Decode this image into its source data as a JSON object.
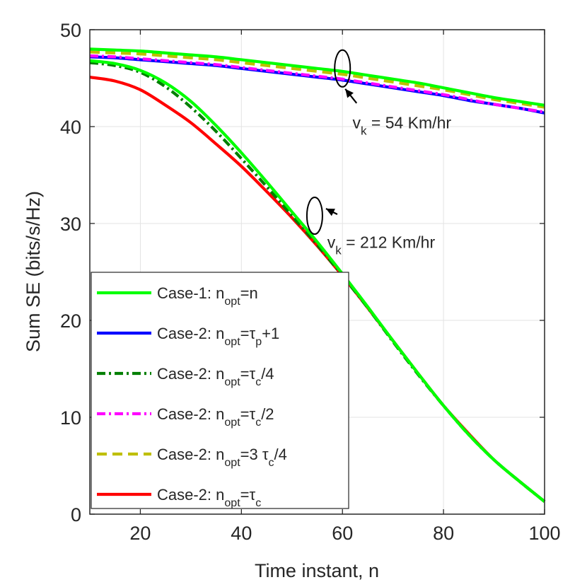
{
  "chart_data": {
    "type": "line",
    "xlabel": "Time instant, n",
    "ylabel": "Sum SE (bits/s/Hz)",
    "xlim": [
      10,
      100
    ],
    "ylim": [
      0,
      50
    ],
    "xticks": [
      20,
      40,
      60,
      80,
      100
    ],
    "yticks": [
      0,
      10,
      20,
      30,
      40,
      50
    ],
    "grid": true,
    "legend_position": "bottom-left",
    "x": [
      10,
      15,
      20,
      25,
      30,
      35,
      40,
      45,
      50,
      55,
      60,
      65,
      70,
      75,
      80,
      85,
      90,
      95,
      100
    ],
    "series": [
      {
        "name": "Case-1: n_opt=n",
        "color": "#00ff00",
        "dash": "solid",
        "group": "54 Km/hr",
        "values": [
          48.0,
          47.9,
          47.8,
          47.6,
          47.4,
          47.2,
          46.9,
          46.6,
          46.3,
          46.0,
          45.7,
          45.3,
          44.9,
          44.5,
          44.0,
          43.5,
          43.0,
          42.6,
          42.2
        ]
      },
      {
        "name": "Case-2: n_opt=τp+1",
        "color": "#0000ff",
        "dash": "solid",
        "group": "54 Km/hr",
        "values": [
          47.2,
          47.1,
          46.9,
          46.7,
          46.5,
          46.3,
          46.0,
          45.7,
          45.4,
          45.1,
          44.8,
          44.4,
          44.0,
          43.6,
          43.2,
          42.7,
          42.3,
          41.9,
          41.4
        ]
      },
      {
        "name": "Case-2: n_opt=τc/4",
        "color": "#007f00",
        "dash": "dashdot",
        "group": "212 Km/hr",
        "values": [
          46.6,
          46.3,
          45.6,
          44.1,
          42.0,
          39.5,
          36.7,
          33.8,
          30.8,
          27.8,
          24.6,
          21.3,
          17.8,
          14.4,
          11.2,
          8.2,
          5.6,
          3.4,
          1.3
        ]
      },
      {
        "name": "Case-2: n_opt=τc/2",
        "color": "#ff00ff",
        "dash": "dashdot",
        "group": "54 Km/hr",
        "values": [
          47.3,
          47.2,
          47.0,
          46.8,
          46.6,
          46.4,
          46.1,
          45.8,
          45.5,
          45.2,
          44.9,
          44.5,
          44.1,
          43.7,
          43.3,
          42.8,
          42.3,
          41.9,
          41.5
        ]
      },
      {
        "name": "Case-2: n_opt=3 τc/4",
        "color": "#bfbf00",
        "dash": "dashed",
        "group": "54 Km/hr",
        "values": [
          47.7,
          47.6,
          47.5,
          47.3,
          47.1,
          46.9,
          46.6,
          46.3,
          46.0,
          45.7,
          45.4,
          45.0,
          44.6,
          44.2,
          43.8,
          43.3,
          42.8,
          42.4,
          42.0
        ]
      },
      {
        "name": "Case-2: n_opt=τc",
        "color": "#ff0000",
        "dash": "solid",
        "group": "212 Km/hr",
        "values": [
          45.1,
          44.7,
          43.8,
          42.2,
          40.4,
          38.2,
          35.9,
          33.3,
          30.6,
          27.7,
          24.6,
          21.3,
          17.9,
          14.5,
          11.2,
          8.3,
          5.6,
          3.4,
          1.3
        ]
      },
      {
        "name": "Case-1 (212 Km/hr)",
        "color": "#00ff00",
        "dash": "solid",
        "group": "212 Km/hr",
        "in_legend": false,
        "values": [
          46.8,
          46.5,
          45.8,
          44.5,
          42.6,
          40.1,
          37.3,
          34.3,
          31.2,
          28.1,
          24.8,
          21.4,
          17.9,
          14.5,
          11.2,
          8.2,
          5.6,
          3.4,
          1.3
        ]
      }
    ],
    "annotations": [
      {
        "id": "54",
        "base": "v",
        "sub": "k",
        "rest": " = 54 Km/hr",
        "ellipse_center": [
          60,
          46.0
        ],
        "label_at": [
          62,
          39.8
        ]
      },
      {
        "id": "212",
        "base": "v",
        "sub": "k",
        "rest": " = 212 Km/hr",
        "ellipse_center": [
          54.5,
          30.8
        ],
        "label_at": [
          57,
          27.5
        ]
      }
    ]
  },
  "legend": {
    "entries": [
      {
        "prefix": "Case-1: n",
        "sub1": "opt",
        "mid": "=n",
        "sub2": "",
        "suffix": ""
      },
      {
        "prefix": "Case-2: n",
        "sub1": "opt",
        "mid": "=τ",
        "sub2": "p",
        "suffix": "+1"
      },
      {
        "prefix": "Case-2: n",
        "sub1": "opt",
        "mid": "=τ",
        "sub2": "c",
        "suffix": "/4"
      },
      {
        "prefix": "Case-2: n",
        "sub1": "opt",
        "mid": "=τ",
        "sub2": "c",
        "suffix": "/2"
      },
      {
        "prefix": "Case-2: n",
        "sub1": "opt",
        "mid": "=3 τ",
        "sub2": "c",
        "suffix": "/4"
      },
      {
        "prefix": "Case-2: n",
        "sub1": "opt",
        "mid": "=τ",
        "sub2": "c",
        "suffix": ""
      }
    ]
  }
}
